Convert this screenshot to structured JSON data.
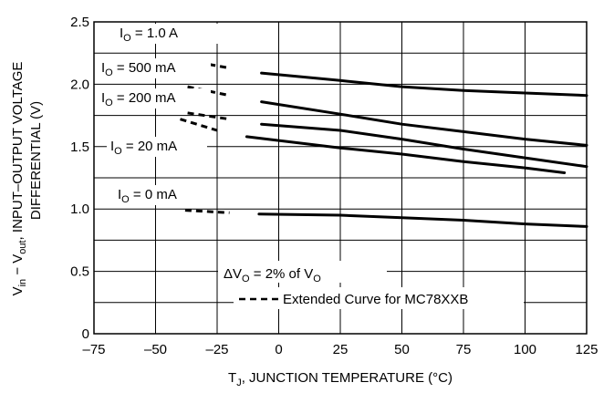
{
  "chart_data": {
    "type": "line",
    "xlabel": {
      "main": "T",
      "sub": "J",
      "rest": ", JUNCTION TEMPERATURE (°C)"
    },
    "ylabel": {
      "line1": [
        {
          "t": "V",
          "s": "normal"
        },
        {
          "t": "in",
          "s": "sub"
        },
        {
          "t": " − V",
          "s": "normal"
        },
        {
          "t": "out",
          "s": "sub"
        },
        {
          "t": ", INPUT–OUTPUT VOLTAGE",
          "s": "normal"
        }
      ],
      "line2": "DIFFERENTIAL (V)"
    },
    "xlim": [
      -75,
      125
    ],
    "ylim": [
      0,
      2.5
    ],
    "x_ticks": [
      -75,
      -50,
      -25,
      0,
      25,
      50,
      75,
      100,
      125
    ],
    "x_tick_labels": [
      "–75",
      "–50",
      "–25",
      "0",
      "25",
      "50",
      "75",
      "100",
      "125"
    ],
    "y_ticks": [
      0,
      0.5,
      1.0,
      1.5,
      2.0,
      2.5
    ],
    "y_tick_labels": [
      "0",
      "0.5",
      "1.0",
      "1.5",
      "2.0",
      "2.5"
    ],
    "grid": true,
    "series": [
      {
        "name": {
          "main": "I",
          "sub": "O",
          "rest": " = 1.0 A"
        },
        "dashed": [
          [
            -37,
            2.19
          ],
          [
            -20,
            2.13
          ]
        ],
        "solid": [
          [
            -7,
            2.09
          ],
          [
            25,
            2.03
          ],
          [
            50,
            1.98
          ],
          [
            75,
            1.95
          ],
          [
            100,
            1.93
          ],
          [
            125,
            1.91
          ]
        ]
      },
      {
        "name": {
          "main": "I",
          "sub": "O",
          "rest": " = 500 mA"
        },
        "dashed": [
          [
            -37,
            1.98
          ],
          [
            -20,
            1.91
          ]
        ],
        "solid": [
          [
            -7,
            1.86
          ],
          [
            25,
            1.76
          ],
          [
            50,
            1.68
          ],
          [
            75,
            1.62
          ],
          [
            100,
            1.56
          ],
          [
            125,
            1.51
          ]
        ]
      },
      {
        "name": {
          "main": "I",
          "sub": "O",
          "rest": " = 200 mA"
        },
        "dashed": [
          [
            -37,
            1.77
          ],
          [
            -20,
            1.72
          ]
        ],
        "solid": [
          [
            -7,
            1.68
          ],
          [
            25,
            1.63
          ],
          [
            50,
            1.56
          ],
          [
            75,
            1.48
          ],
          [
            100,
            1.41
          ],
          [
            125,
            1.34
          ]
        ]
      },
      {
        "name": {
          "main": "I",
          "sub": "O",
          "rest": " = 20 mA"
        },
        "dashed": [
          [
            -40,
            1.72
          ],
          [
            -25,
            1.63
          ]
        ],
        "solid": [
          [
            -13,
            1.58
          ],
          [
            25,
            1.49
          ],
          [
            50,
            1.44
          ],
          [
            75,
            1.38
          ],
          [
            100,
            1.33
          ],
          [
            116,
            1.29
          ]
        ]
      },
      {
        "name": {
          "main": "I",
          "sub": "O",
          "rest": " = 0 mA"
        },
        "dashed": [
          [
            -38,
            0.99
          ],
          [
            -20,
            0.97
          ]
        ],
        "solid": [
          [
            -8,
            0.96
          ],
          [
            25,
            0.95
          ],
          [
            50,
            0.93
          ],
          [
            75,
            0.91
          ],
          [
            100,
            0.88
          ],
          [
            125,
            0.86
          ]
        ]
      }
    ],
    "legend": {
      "condition": {
        "main": "ΔV",
        "sub": "O",
        "rest": " = 2% of V",
        "sub2": "O"
      },
      "dashed_entry": "Extended Curve for MC78XXB"
    }
  }
}
